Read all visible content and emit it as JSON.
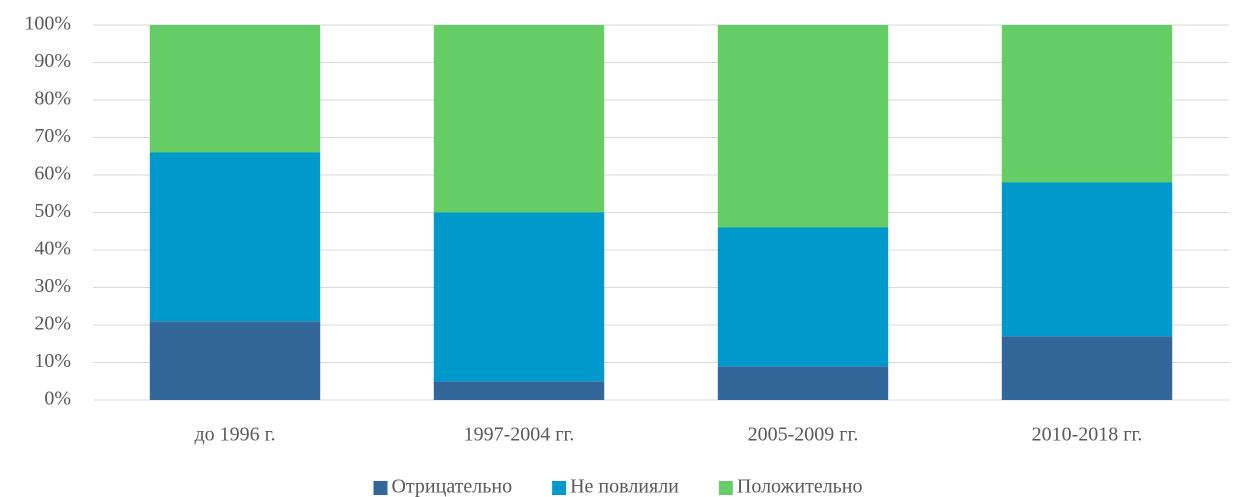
{
  "chart_data": {
    "type": "stacked_bar",
    "categories": [
      "до 1996 г.",
      "1997-2004 гг.",
      "2005-2009 гг.",
      "2010-2018 гг."
    ],
    "series": [
      {
        "name": "Отрицательно",
        "color": "#336699",
        "values": [
          21,
          5,
          9,
          17
        ]
      },
      {
        "name": "Не повлияли",
        "color": "#0099cc",
        "values": [
          45,
          45,
          37,
          41
        ]
      },
      {
        "name": "Положительно",
        "color": "#66cc66",
        "values": [
          34,
          50,
          54,
          42
        ]
      }
    ],
    "ylim": [
      0,
      100
    ],
    "yticks": [
      {
        "value": 0,
        "label": "0%"
      },
      {
        "value": 10,
        "label": "10%"
      },
      {
        "value": 20,
        "label": "20%"
      },
      {
        "value": 30,
        "label": "30%"
      },
      {
        "value": 40,
        "label": "40%"
      },
      {
        "value": 50,
        "label": "50%"
      },
      {
        "value": 60,
        "label": "60%"
      },
      {
        "value": 70,
        "label": "70%"
      },
      {
        "value": 80,
        "label": "80%"
      },
      {
        "value": 90,
        "label": "90%"
      },
      {
        "value": 100,
        "label": "100%"
      }
    ],
    "grid": true,
    "legend": "bottom"
  }
}
